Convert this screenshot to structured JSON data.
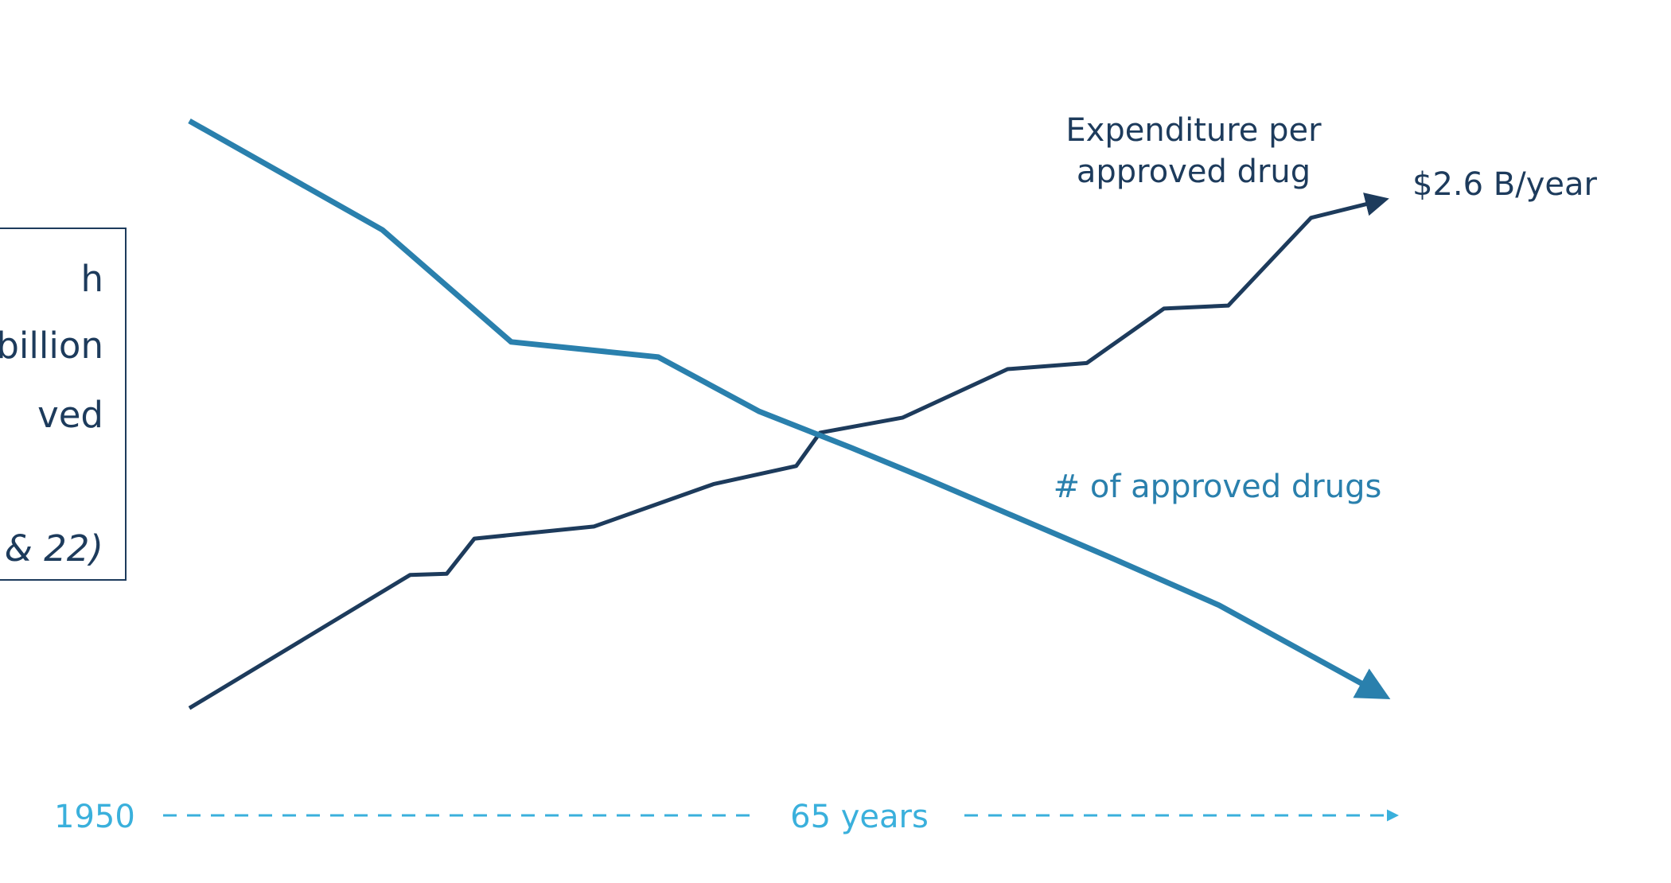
{
  "callout": {
    "lines": [
      "h",
      " billion",
      "ved",
      "& 22)"
    ]
  },
  "chart_data": {
    "type": "line",
    "xlabel_start": "1950",
    "xlabel_span": "65 years",
    "xlim": [
      0,
      65
    ],
    "ylim": [
      0,
      100
    ],
    "series": [
      {
        "name": "Expenditure per approved drug",
        "color": "#1d3b5c",
        "end_label": "$2.6 B/year",
        "points": [
          [
            0,
            3
          ],
          [
            12.0,
            25
          ],
          [
            14.0,
            25.2
          ],
          [
            15.5,
            31
          ],
          [
            22.0,
            33
          ],
          [
            28.5,
            40
          ],
          [
            33.0,
            43
          ],
          [
            34.3,
            48.5
          ],
          [
            38.8,
            51
          ],
          [
            44.5,
            59
          ],
          [
            48.8,
            60
          ],
          [
            53.0,
            69
          ],
          [
            56.5,
            69.5
          ],
          [
            61.0,
            84
          ],
          [
            65.0,
            87
          ]
        ]
      },
      {
        "name": "# of approved drugs",
        "color": "#2a80ad",
        "points": [
          [
            0,
            100
          ],
          [
            10.5,
            82
          ],
          [
            17.5,
            63.5
          ],
          [
            25.5,
            61
          ],
          [
            31.0,
            52
          ],
          [
            36.0,
            46
          ],
          [
            40.0,
            41
          ],
          [
            50.0,
            28
          ],
          [
            56.0,
            20
          ],
          [
            65.0,
            5
          ]
        ]
      }
    ]
  }
}
